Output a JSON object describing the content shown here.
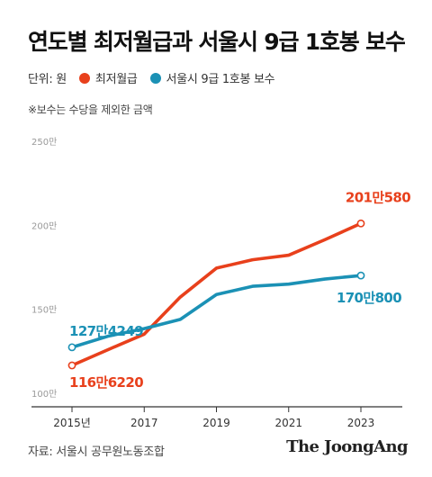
{
  "title": "연도별 최저월급과 서울시 9급 1호봉 보수",
  "unit_label": "단위: 원",
  "note": "※보수는 수당을 제외한 금액",
  "source": "자료: 서울시 공무원노동조합",
  "brand": "The JoongAng",
  "chart_data": {
    "type": "line",
    "x": [
      2015,
      2016,
      2017,
      2018,
      2019,
      2020,
      2021,
      2022,
      2023
    ],
    "x_tick_labels": [
      "2015년",
      "2017",
      "2019",
      "2021",
      "2023"
    ],
    "x_tick_values": [
      2015,
      2017,
      2019,
      2021,
      2023
    ],
    "y_tick_labels": [
      "100만",
      "150만",
      "200만",
      "250만"
    ],
    "y_tick_values": [
      100,
      150,
      200,
      250
    ],
    "ylim": [
      100,
      250
    ],
    "y_unit": "만원",
    "grid": false,
    "legend_position": "top-left",
    "series": [
      {
        "name": "최저월급",
        "color": "#e8401c",
        "values": [
          116.6,
          126.0,
          135.2,
          157.3,
          174.5,
          179.5,
          182.2,
          191.4,
          201.1
        ],
        "start_label": "116만6220",
        "end_label": "201만580"
      },
      {
        "name": "서울시 9급 1호봉 보수",
        "color": "#1b91b5",
        "values": [
          127.4,
          134.0,
          138.5,
          144.0,
          158.8,
          163.7,
          165.0,
          168.0,
          170.1
        ],
        "start_label": "127만4249",
        "end_label": "170만800"
      }
    ]
  }
}
